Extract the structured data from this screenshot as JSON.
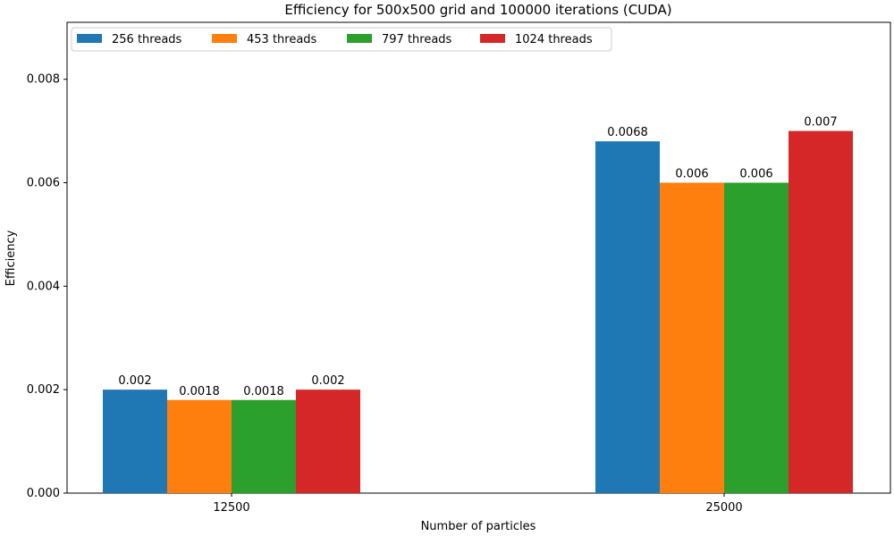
{
  "chart_data": {
    "type": "bar",
    "title": "Efficiency for 500x500 grid and 100000 iterations (CUDA)",
    "xlabel": "Number of particles",
    "ylabel": "Efficiency",
    "categories": [
      "12500",
      "25000"
    ],
    "series": [
      {
        "name": "256 threads",
        "color": "#1f77b4",
        "values": [
          0.002,
          0.0068
        ],
        "labels": [
          "0.002",
          "0.0068"
        ]
      },
      {
        "name": "453 threads",
        "color": "#ff7f0e",
        "values": [
          0.0018,
          0.006
        ],
        "labels": [
          "0.0018",
          "0.006"
        ]
      },
      {
        "name": "797 threads",
        "color": "#2ca02c",
        "values": [
          0.0018,
          0.006
        ],
        "labels": [
          "0.0018",
          "0.006"
        ]
      },
      {
        "name": "1024 threads",
        "color": "#d62728",
        "values": [
          0.002,
          0.007
        ],
        "labels": [
          "0.002",
          "0.007"
        ]
      }
    ],
    "ylim": [
      0,
      0.0091
    ],
    "yticks": [
      0,
      0.002,
      0.004,
      0.006,
      0.008
    ],
    "ytick_labels": [
      "0.000",
      "0.002",
      "0.004",
      "0.006",
      "0.008"
    ],
    "grid": false,
    "legend_position": "top-left"
  }
}
